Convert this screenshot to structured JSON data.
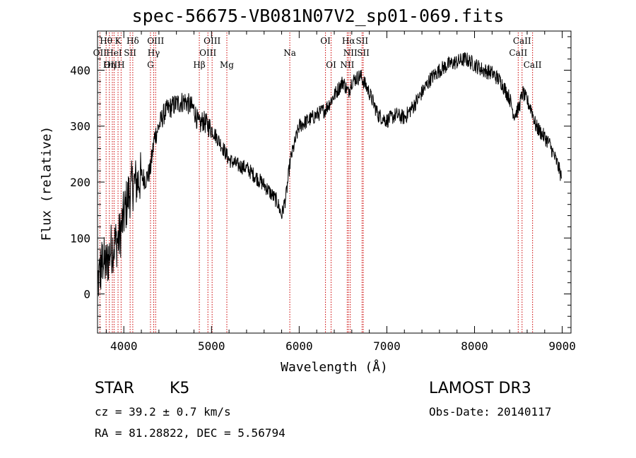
{
  "figure": {
    "title": "spec-56675-VB081N07V2_sp01-069.fits",
    "object_class": "STAR",
    "subclass": "K5",
    "survey": "LAMOST DR3",
    "cz_text": "cz = 39.2 ± 0.7 km/s",
    "obs_date_text": "Obs-Date: 20140117",
    "radec_text": "RA =  81.28822, DEC =    5.56794"
  },
  "chart_data": {
    "type": "line",
    "title": "spec-56675-VB081N07V2_sp01-069.fits",
    "xlabel": "Wavelength (Å)",
    "ylabel": "Flux (relative)",
    "xlim": [
      3700,
      9100
    ],
    "ylim": [
      -70,
      470
    ],
    "x_ticks": [
      4000,
      5000,
      6000,
      7000,
      8000,
      9000
    ],
    "y_ticks": [
      0,
      100,
      200,
      300,
      400
    ],
    "grid": false,
    "line_color": "#000000",
    "marker_color": "#cc0000",
    "series": [
      {
        "x": [
          3700,
          3730,
          3760,
          3800,
          3850,
          3900,
          3950,
          4000,
          4050,
          4100,
          4150,
          4200,
          4250,
          4300,
          4350,
          4400,
          4450,
          4500,
          4600,
          4700,
          4800,
          4860,
          4900,
          5000,
          5100,
          5200,
          5300,
          5400,
          5500,
          5600,
          5700,
          5750,
          5800,
          5850,
          5900,
          5950,
          6000,
          6100,
          6200,
          6300,
          6400,
          6500,
          6560,
          6600,
          6700,
          6800,
          6900,
          7000,
          7100,
          7200,
          7300,
          7400,
          7500,
          7600,
          7700,
          7800,
          7900,
          8000,
          8100,
          8200,
          8300,
          8400,
          8450,
          8500,
          8550,
          8600,
          8650,
          8700,
          8750,
          8800,
          8850,
          8900,
          8950,
          8990
        ],
        "y": [
          20,
          40,
          60,
          50,
          80,
          90,
          100,
          140,
          175,
          195,
          200,
          210,
          205,
          220,
          280,
          300,
          320,
          330,
          340,
          345,
          330,
          300,
          310,
          295,
          270,
          240,
          230,
          225,
          210,
          195,
          175,
          165,
          140,
          175,
          240,
          270,
          300,
          310,
          320,
          330,
          355,
          380,
          360,
          380,
          390,
          360,
          320,
          310,
          320,
          315,
          335,
          360,
          385,
          400,
          410,
          415,
          420,
          410,
          400,
          395,
          380,
          350,
          320,
          330,
          360,
          345,
          330,
          300,
          290,
          280,
          270,
          250,
          230,
          210
        ]
      }
    ],
    "spectral_lines": [
      {
        "name": "Hθ",
        "x": 3798,
        "row": 1
      },
      {
        "name": "OII",
        "x": 3727,
        "row": 2
      },
      {
        "name": "OIII",
        "x": 3869,
        "row": 3
      },
      {
        "name": "K",
        "x": 3934,
        "row": 1
      },
      {
        "name": "HeI",
        "x": 3889,
        "row": 2
      },
      {
        "name": "Hη",
        "x": 3835,
        "row": 3
      },
      {
        "name": "SII",
        "x": 4072,
        "row": 2
      },
      {
        "name": "H",
        "x": 3969,
        "row": 3
      },
      {
        "name": "Hδ",
        "x": 4102,
        "row": 1
      },
      {
        "name": "OIII",
        "x": 4363,
        "row": 1
      },
      {
        "name": "Hγ",
        "x": 4341,
        "row": 2
      },
      {
        "name": "G",
        "x": 4304,
        "row": 3
      },
      {
        "name": "Hβ",
        "x": 4861,
        "row": 3
      },
      {
        "name": "OIII",
        "x": 5007,
        "row": 1
      },
      {
        "name": "OIII",
        "x": 4959,
        "row": 2
      },
      {
        "name": "Mg",
        "x": 5175,
        "row": 3
      },
      {
        "name": "Na",
        "x": 5893,
        "row": 2
      },
      {
        "name": "OI",
        "x": 6300,
        "row": 1
      },
      {
        "name": "OI",
        "x": 6364,
        "row": 3
      },
      {
        "name": "Hα",
        "x": 6563,
        "row": 1
      },
      {
        "name": "NII",
        "x": 6583,
        "row": 2
      },
      {
        "name": "NII",
        "x": 6548,
        "row": 3
      },
      {
        "name": "SII",
        "x": 6717,
        "row": 1
      },
      {
        "name": "SII",
        "x": 6731,
        "row": 2
      },
      {
        "name": "CaII",
        "x": 8542,
        "row": 1
      },
      {
        "name": "CaII",
        "x": 8498,
        "row": 2
      },
      {
        "name": "CaII",
        "x": 8662,
        "row": 3
      }
    ]
  }
}
